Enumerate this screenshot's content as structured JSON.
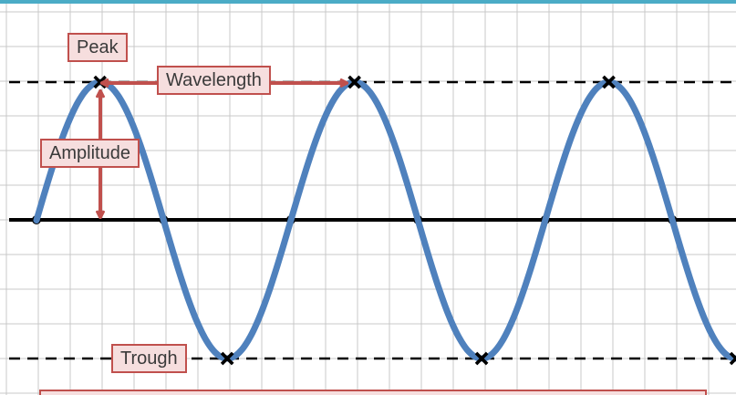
{
  "labels": {
    "peak": "Peak",
    "wavelength": "Wavelength",
    "amplitude": "Amplitude",
    "trough": "Trough"
  },
  "colors": {
    "wave": "#4f81bd",
    "annotation": "#c0504d",
    "label_fill": "#f6dede",
    "grid": "#c8c8c8",
    "axis": "#000000",
    "top_border": "#4bacc6"
  },
  "wave": {
    "cycles_visible": 2.75,
    "wavelength_grid_cells": 8,
    "amplitude_grid_cells": 4
  }
}
